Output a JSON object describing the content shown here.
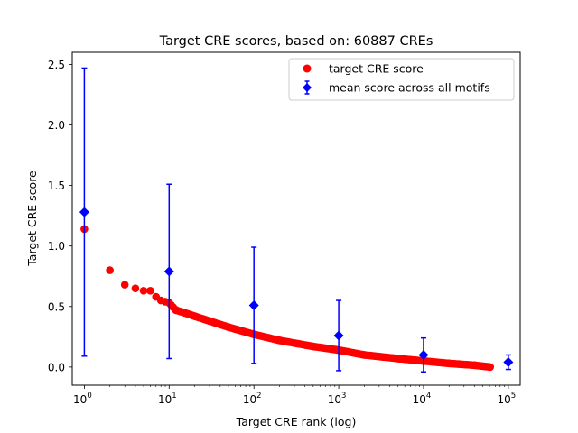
{
  "chart_data": {
    "type": "scatter",
    "title": "Target CRE scores, based on: 60887 CREs",
    "xlabel": "Target CRE rank (log)",
    "ylabel": "Target CRE score",
    "xscale": "log",
    "xlim": [
      0.72,
      138000
    ],
    "ylim": [
      -0.15,
      2.6
    ],
    "xtick_labels": [
      {
        "value": 1,
        "base": "10",
        "exp": "0"
      },
      {
        "value": 10,
        "base": "10",
        "exp": "1"
      },
      {
        "value": 100,
        "base": "10",
        "exp": "2"
      },
      {
        "value": 1000,
        "base": "10",
        "exp": "3"
      },
      {
        "value": 10000,
        "base": "10",
        "exp": "4"
      },
      {
        "value": 100000,
        "base": "10",
        "exp": "5"
      }
    ],
    "yticks": [
      0.0,
      0.5,
      1.0,
      1.5,
      2.0,
      2.5
    ],
    "ytick_labels": [
      "0.0",
      "0.5",
      "1.0",
      "1.5",
      "2.0",
      "2.5"
    ],
    "grid": false,
    "legend_position": "top-right",
    "series": [
      {
        "name": "target CRE score",
        "marker": "circle",
        "color": "#ff0000",
        "x": [
          1,
          2,
          3,
          4,
          5,
          6,
          7,
          8,
          9,
          10,
          12,
          15,
          20,
          30,
          50,
          100,
          200,
          500,
          1000,
          2000,
          5000,
          10000,
          20000,
          40000,
          60887
        ],
        "y": [
          1.14,
          0.8,
          0.68,
          0.65,
          0.63,
          0.63,
          0.58,
          0.55,
          0.54,
          0.53,
          0.47,
          0.45,
          0.42,
          0.38,
          0.33,
          0.27,
          0.22,
          0.17,
          0.14,
          0.1,
          0.07,
          0.05,
          0.03,
          0.015,
          0.0
        ]
      },
      {
        "name": "mean score across all motifs",
        "marker": "diamond",
        "color": "#0000ff",
        "errorbars": true,
        "x": [
          1,
          10,
          100,
          1000,
          10000,
          100000
        ],
        "y": [
          1.28,
          0.79,
          0.51,
          0.26,
          0.1,
          0.04
        ],
        "yerr": [
          1.19,
          0.72,
          0.48,
          0.29,
          0.14,
          0.06
        ]
      }
    ]
  }
}
